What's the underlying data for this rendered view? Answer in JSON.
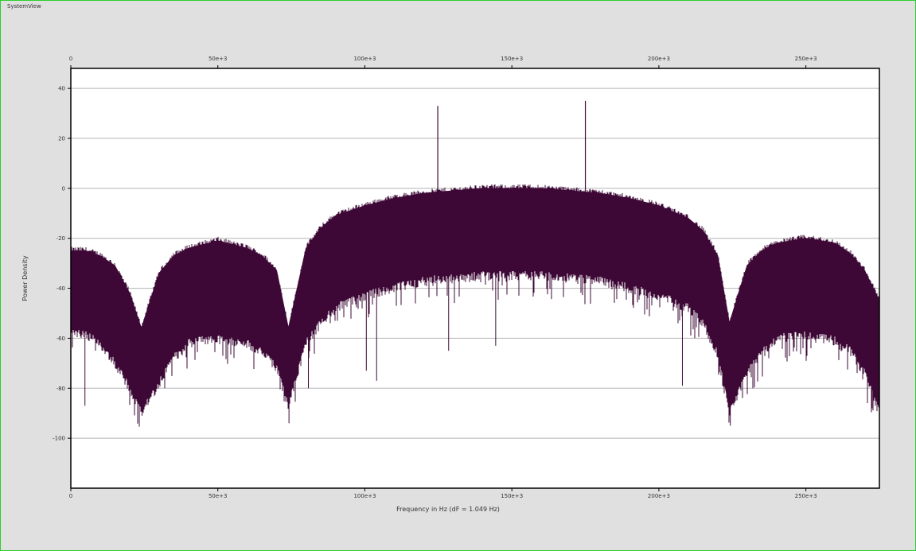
{
  "window": {
    "title": "SystemView"
  },
  "colors": {
    "window_bg": "#e0e0e0",
    "window_border": "#2ecc2e",
    "plot_bg": "#ffffff",
    "grid": "#b4b4b4",
    "series": "#3d0836",
    "text": "#333333"
  },
  "chart_data": {
    "type": "line",
    "title": "",
    "xlabel": "Frequency in Hz (dF = 1.049 Hz)",
    "ylabel": "Power Density",
    "xlim": [
      0,
      275000
    ],
    "ylim": [
      -120,
      48
    ],
    "x_ticks": [
      0,
      50000,
      100000,
      150000,
      200000,
      250000
    ],
    "x_tick_labels": [
      "0",
      "50e+3",
      "100e+3",
      "150e+3",
      "200e+3",
      "250e+3"
    ],
    "y_ticks": [
      40,
      20,
      0,
      -20,
      -40,
      -60,
      -80,
      -100
    ],
    "y_tick_labels": [
      "40",
      "20",
      "0",
      "-20",
      "-40",
      "-60",
      "-80",
      "-100"
    ],
    "grid": true,
    "top_axis_labels": true,
    "series": [
      {
        "style": "dense noise-like spectrum; upper and lower envelopes shown",
        "envelope_x": [
          0,
          5000,
          10000,
          15000,
          20000,
          24000,
          30000,
          35000,
          40000,
          50000,
          60000,
          65000,
          70000,
          74000,
          80000,
          85000,
          90000,
          100000,
          110000,
          120000,
          130000,
          140000,
          150000,
          160000,
          170000,
          180000,
          190000,
          200000,
          210000,
          215000,
          220000,
          224000,
          230000,
          235000,
          240000,
          250000,
          260000,
          265000,
          270000,
          275000
        ],
        "upper_envelope": [
          -25,
          -25,
          -27,
          -31,
          -42,
          -56,
          -34,
          -27,
          -24,
          -21,
          -24,
          -27,
          -33,
          -56,
          -24,
          -16,
          -11,
          -7,
          -4,
          -2,
          -1,
          0,
          0,
          0,
          -1,
          -2,
          -4,
          -7,
          -12,
          -17,
          -27,
          -54,
          -31,
          -25,
          -22,
          -20,
          -22,
          -26,
          -33,
          -45
        ],
        "lower_envelope": [
          -55,
          -57,
          -60,
          -68,
          -78,
          -88,
          -76,
          -66,
          -60,
          -58,
          -60,
          -64,
          -70,
          -85,
          -60,
          -52,
          -46,
          -41,
          -38,
          -35,
          -34,
          -33,
          -33,
          -33,
          -34,
          -35,
          -38,
          -41,
          -46,
          -52,
          -64,
          -88,
          -72,
          -64,
          -58,
          -57,
          -59,
          -63,
          -72,
          -88
        ],
        "spikes": [
          {
            "x": 124800,
            "y": 33
          },
          {
            "x": 175000,
            "y": 35
          }
        ],
        "dips": [
          {
            "x": 4800,
            "y": -87
          },
          {
            "x": 24200,
            "y": -91
          },
          {
            "x": 74200,
            "y": -94
          },
          {
            "x": 80800,
            "y": -80
          },
          {
            "x": 100500,
            "y": -73
          },
          {
            "x": 104000,
            "y": -77
          },
          {
            "x": 128500,
            "y": -65
          },
          {
            "x": 144500,
            "y": -63
          },
          {
            "x": 208000,
            "y": -79
          },
          {
            "x": 224300,
            "y": -95
          },
          {
            "x": 272500,
            "y": -88
          }
        ]
      }
    ]
  }
}
